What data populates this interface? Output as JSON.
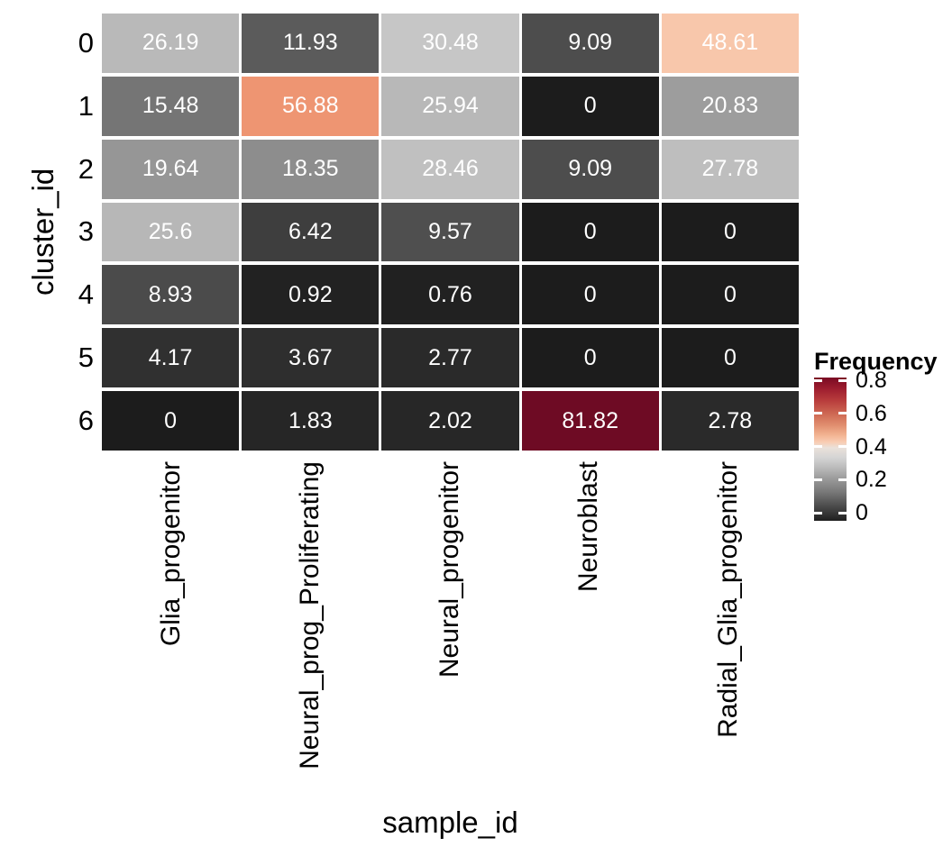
{
  "chart_data": {
    "type": "heatmap",
    "xlabel": "sample_id",
    "ylabel": "cluster_id",
    "rows": [
      "0",
      "1",
      "2",
      "3",
      "4",
      "5",
      "6"
    ],
    "columns": [
      "Glia_progenitor",
      "Neural_prog_Proliferating",
      "Neural_progenitor",
      "Neuroblast",
      "Radial_Glia_progenitor"
    ],
    "values": [
      [
        26.19,
        11.93,
        30.48,
        9.09,
        48.61
      ],
      [
        15.48,
        56.88,
        25.94,
        0,
        20.83
      ],
      [
        19.64,
        18.35,
        28.46,
        9.09,
        27.78
      ],
      [
        25.6,
        6.42,
        9.57,
        0,
        0
      ],
      [
        8.93,
        0.92,
        0.76,
        0,
        0
      ],
      [
        4.17,
        3.67,
        2.77,
        0,
        0
      ],
      [
        0,
        1.83,
        2.02,
        81.82,
        2.78
      ]
    ],
    "cell_colors": [
      [
        "#b9b9b9",
        "#5b5b5b",
        "#c6c6c6",
        "#4d4d4d",
        "#f8c7ab"
      ],
      [
        "#757575",
        "#ee9572",
        "#b8b8b8",
        "#1c1c1c",
        "#9d9d9d"
      ],
      [
        "#969696",
        "#8d8d8d",
        "#c0c0c0",
        "#4d4d4d",
        "#bebebe"
      ],
      [
        "#b7b7b7",
        "#3e3e3e",
        "#4f4f4f",
        "#1c1c1c",
        "#1c1c1c"
      ],
      [
        "#4b4b4b",
        "#222222",
        "#212121",
        "#1c1c1c",
        "#1c1c1c"
      ],
      [
        "#303030",
        "#2e2e2e",
        "#2a2a2a",
        "#1c1c1c",
        "#1c1c1c"
      ],
      [
        "#1c1c1c",
        "#262626",
        "#272727",
        "#6e0b24",
        "#2a2a2a"
      ]
    ],
    "value_text_color": "#ffffff",
    "grid_line_color": "#ffffff",
    "legend": {
      "title": "Frequency",
      "ticks": [
        "0.8",
        "0.6",
        "0.4",
        "0.2",
        "0"
      ],
      "tick_values": [
        0.8,
        0.6,
        0.4,
        0.2,
        0
      ],
      "range": [
        0,
        0.8182
      ],
      "gradient_stops": [
        [
          "0%",
          "#7a0a23"
        ],
        [
          "8%",
          "#9e1e2f"
        ],
        [
          "16%",
          "#b83c3c"
        ],
        [
          "25%",
          "#cd6752"
        ],
        [
          "33%",
          "#e08d6e"
        ],
        [
          "40%",
          "#f2b391"
        ],
        [
          "45%",
          "#f9ccb2"
        ],
        [
          "49%",
          "#eae1da"
        ],
        [
          "56%",
          "#d4d4d4"
        ],
        [
          "63%",
          "#bababa"
        ],
        [
          "71%",
          "#999999"
        ],
        [
          "80%",
          "#787878"
        ],
        [
          "90%",
          "#4a4a4a"
        ],
        [
          "100%",
          "#1f1f1f"
        ]
      ]
    }
  }
}
